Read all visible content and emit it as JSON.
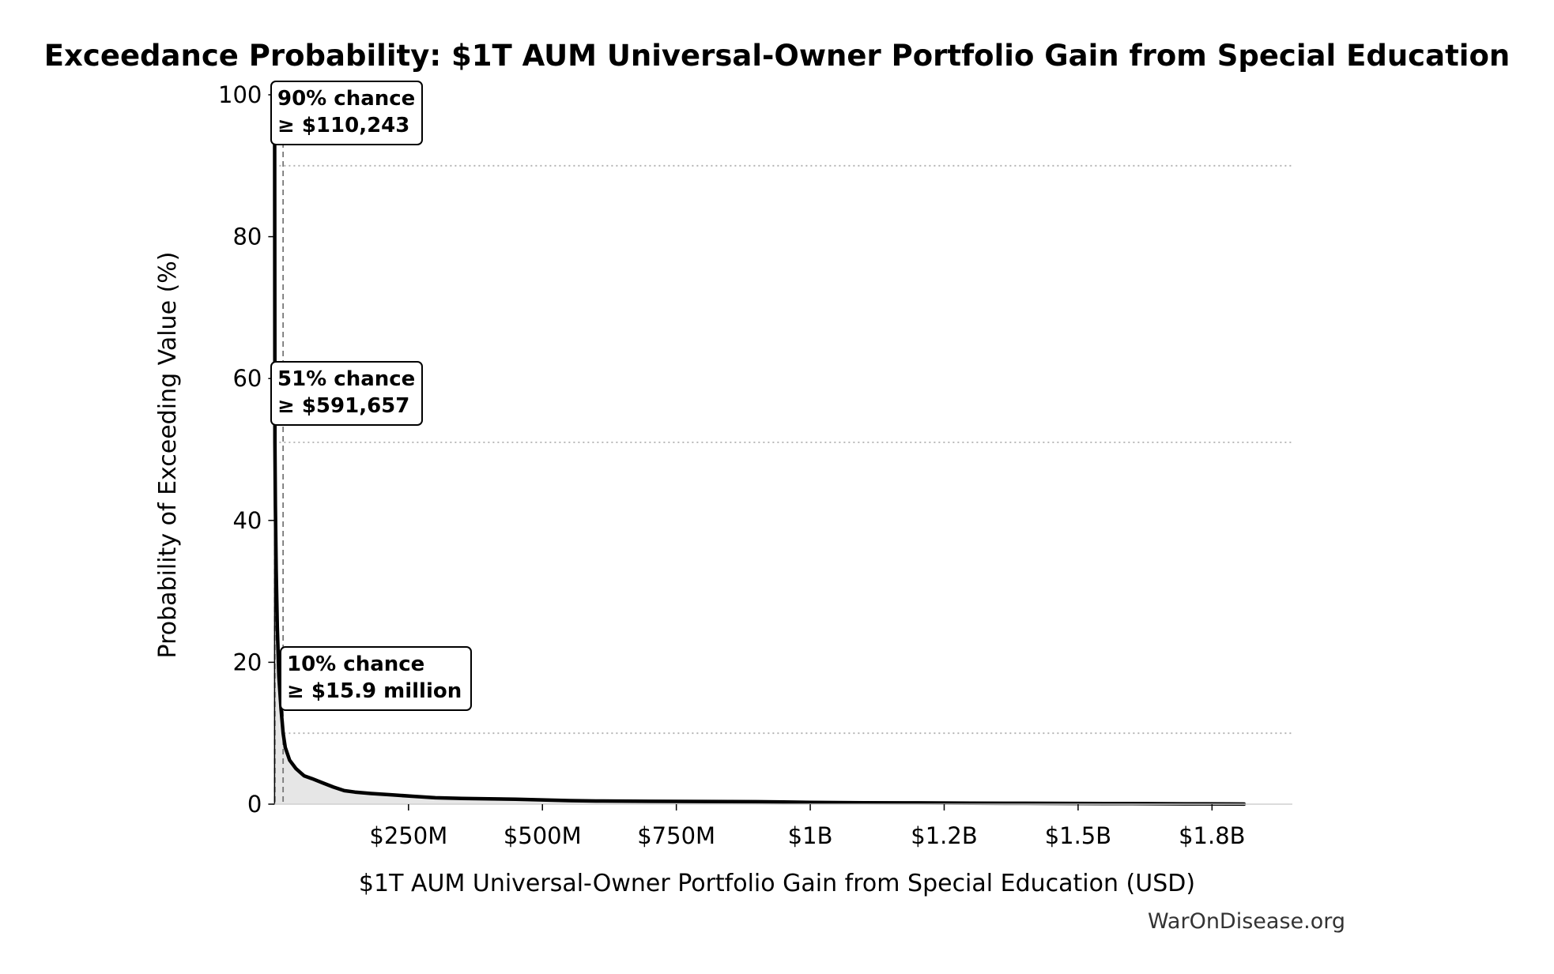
{
  "chart_data": {
    "type": "line",
    "title": "Exceedance Probability: $1T AUM Universal-Owner Portfolio Gain from Special Education",
    "xlabel": "$1T AUM Universal-Owner Portfolio Gain from Special Education (USD)",
    "ylabel": "Probability of Exceeding Value (%)",
    "xlim": [
      -5000000,
      1900000000
    ],
    "ylim": [
      0,
      100
    ],
    "x_ticks": [
      {
        "value": 250000000,
        "label": "$250M"
      },
      {
        "value": 500000000,
        "label": "$500M"
      },
      {
        "value": 750000000,
        "label": "$750M"
      },
      {
        "value": 1000000000,
        "label": "$1B"
      },
      {
        "value": 1250000000,
        "label": "$1.2B"
      },
      {
        "value": 1500000000,
        "label": "$1.5B"
      },
      {
        "value": 1750000000,
        "label": "$1.8B"
      }
    ],
    "y_ticks": [
      {
        "value": 0,
        "label": "0"
      },
      {
        "value": 20,
        "label": "20"
      },
      {
        "value": 40,
        "label": "40"
      },
      {
        "value": 60,
        "label": "60"
      },
      {
        "value": 80,
        "label": "80"
      },
      {
        "value": 100,
        "label": "100"
      }
    ],
    "series": [
      {
        "x": [
          0,
          110243,
          591657,
          1500000,
          3000000,
          5000000,
          8000000,
          12000000,
          15900000,
          20000000,
          28000000,
          40000000,
          55000000,
          70000000,
          90000000,
          110000000,
          130000000,
          150000000,
          180000000,
          220000000,
          260000000,
          300000000,
          350000000,
          400000000,
          450000000,
          500000000,
          550000000,
          600000000,
          700000000,
          800000000,
          900000000,
          950000000,
          1000000000,
          1100000000,
          1200000000,
          1300000000,
          1400000000,
          1500000000,
          1600000000,
          1700000000,
          1780000000,
          1810000000
        ],
        "y": [
          100,
          90,
          51,
          42,
          33,
          25,
          18,
          13.5,
          10,
          8,
          6.2,
          5,
          4,
          3.6,
          3,
          2.4,
          1.9,
          1.7,
          1.5,
          1.3,
          1.1,
          0.9,
          0.8,
          0.75,
          0.7,
          0.6,
          0.5,
          0.45,
          0.4,
          0.38,
          0.35,
          0.3,
          0.25,
          0.2,
          0.18,
          0.15,
          0.12,
          0.1,
          0.08,
          0.05,
          0.03,
          0.01
        ]
      }
    ],
    "thresholds": [
      {
        "probability": 90,
        "value": 110243
      },
      {
        "probability": 51,
        "value": 591657
      },
      {
        "probability": 10,
        "value": 15900000
      }
    ],
    "annotations": [
      {
        "line1": "90% chance",
        "line2": "≥ $110,243"
      },
      {
        "line1": "51% chance",
        "line2": "≥ $591,657"
      },
      {
        "line1": "10% chance",
        "line2": "≥ $15.9 million"
      }
    ],
    "watermark": "WarOnDisease.org",
    "colors": {
      "line": "#000000",
      "fill": "#e6e6e6",
      "grid": "#b0b0b0",
      "threshold": "#777777"
    }
  }
}
